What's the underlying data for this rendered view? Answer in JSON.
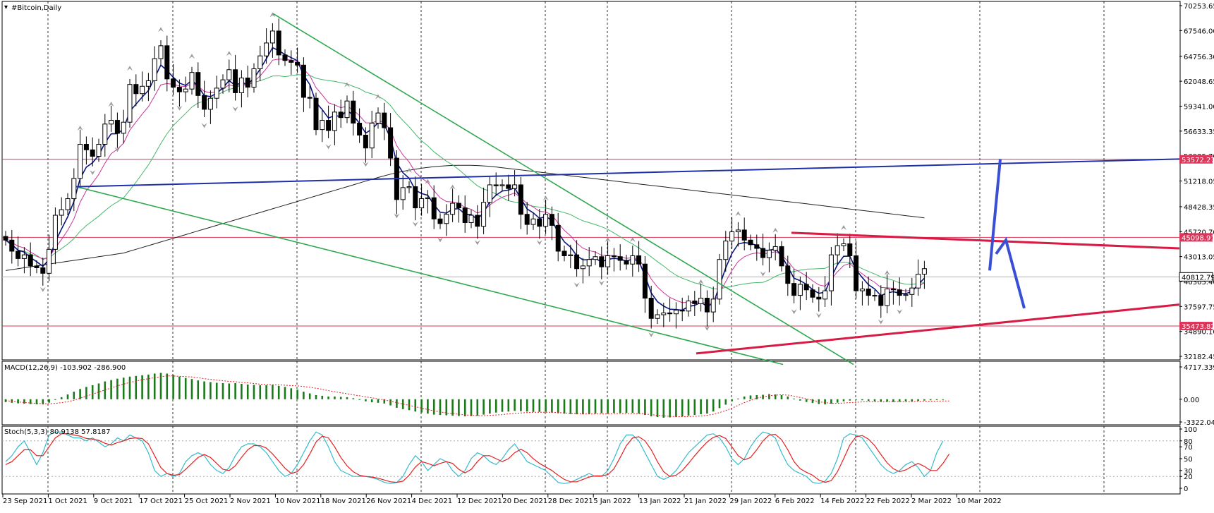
{
  "window": {
    "symbol_title": "#Bitcoin,Daily"
  },
  "colors": {
    "bull_body": "#ffffff",
    "bear_body": "#000000",
    "wick": "#000000",
    "grid": "#000000",
    "hline": "#d9365a",
    "blue_line": "#1f2fa8",
    "green_channel": "#2ea84e",
    "red_trend": "#d81b44",
    "forecast": "#3a50d4",
    "ma_fast": "#0b1580",
    "ma_mid": "#cc3399",
    "ma_slow": "#44b86a",
    "ma_long": "#202020",
    "macd_hist": "#1a7a1a",
    "macd_signal": "#e52020",
    "stoch_main": "#33bbcc",
    "stoch_signal": "#e52020",
    "tag_red": "#d9365a",
    "tag_dark": "#000000"
  },
  "chart_data": [
    {
      "type": "candlestick",
      "title": "#Bitcoin,Daily",
      "ylim": [
        32182.45,
        70253.65
      ],
      "price_ticks": [
        "70253.65",
        "67546.00",
        "64756.30",
        "62048.65",
        "59341.00",
        "56633.35",
        "53925.70",
        "51218.05",
        "48428.35",
        "45720.70",
        "43013.05",
        "40305.40",
        "37597.75",
        "34890.10",
        "32182.45"
      ],
      "horizontal_levels": [
        {
          "value": 53572.27,
          "label": "53572.27",
          "style": "red-tag"
        },
        {
          "value": 45098.91,
          "label": "45098.91",
          "style": "red-tag"
        },
        {
          "value": 40812.79,
          "label": "40812.79",
          "style": "current-price"
        },
        {
          "value": 35473.82,
          "label": "35473.82",
          "style": "red-tag"
        }
      ],
      "x_labels": [
        "23 Sep 2021",
        "1 Oct 2021",
        "9 Oct 2021",
        "17 Oct 2021",
        "25 Oct 2021",
        "2 Nov 2021",
        "10 Nov 2021",
        "18 Nov 2021",
        "26 Nov 2021",
        "4 Dec 2021",
        "12 Dec 2021",
        "20 Dec 2021",
        "28 Dec 2021",
        "5 Jan 2022",
        "13 Jan 2022",
        "21 Jan 2022",
        "29 Jan 2022",
        "6 Feb 2022",
        "14 Feb 2022",
        "22 Feb 2022",
        "2 Mar 2022",
        "10 Mar 2022"
      ],
      "series_close": [
        44800,
        43600,
        42800,
        43200,
        42000,
        41800,
        41200,
        43800,
        47500,
        48100,
        49300,
        51500,
        55200,
        54600,
        53900,
        55200,
        57400,
        57800,
        56400,
        57600,
        61700,
        60700,
        61500,
        62100,
        64500,
        65900,
        62300,
        61400,
        60900,
        61200,
        63000,
        60500,
        59000,
        60200,
        61300,
        62200,
        63300,
        60800,
        62400,
        61400,
        63400,
        64800,
        66200,
        67500,
        64900,
        64300,
        64100,
        63800,
        60300,
        60200,
        56800,
        57800,
        56700,
        58700,
        58100,
        59900,
        57500,
        56200,
        54800,
        57500,
        58600,
        57000,
        53700,
        49200,
        50500,
        50600,
        48300,
        49300,
        49400,
        47100,
        46600,
        47600,
        48800,
        48300,
        46700,
        47500,
        46300,
        48900,
        50800,
        50700,
        50800,
        50400,
        50800,
        47600,
        46500,
        47100,
        46300,
        47600,
        46400,
        43600,
        43100,
        43200,
        41700,
        42000,
        42700,
        43000,
        41900,
        43100,
        43000,
        42600,
        42200,
        43100,
        42200,
        38500,
        36300,
        36700,
        36900,
        36800,
        37200,
        37100,
        38200,
        37900,
        38500,
        37000,
        38400,
        42700,
        44700,
        45700,
        45900,
        44800,
        44300,
        43900,
        42900,
        43700,
        44100,
        42000,
        40100,
        38800,
        40000,
        39400,
        38600,
        38400,
        39300,
        43200,
        44200,
        44400,
        43100,
        39300,
        39500,
        38800,
        38800,
        37700,
        39500,
        39400,
        38800,
        38900,
        39600,
        41100,
        41700
      ],
      "annotations": [
        "green descending channel",
        "blue rising resistance line",
        "red converging triangle",
        "blue forecast path"
      ],
      "moving_averages": [
        "fast MA",
        "mid MA",
        "slow MA",
        "long MA"
      ]
    },
    {
      "type": "histogram",
      "title": "MACD(12,26,9) -103.902 -286.900",
      "ticks": [
        "4717.339",
        "0.00",
        "-3322.042"
      ],
      "ylim": [
        -3322.042,
        4717.339
      ],
      "hist": [
        -420,
        -520,
        -600,
        -640,
        -700,
        -740,
        -760,
        -500,
        -100,
        300,
        700,
        1100,
        1500,
        1800,
        2050,
        2300,
        2600,
        2800,
        3000,
        3150,
        3300,
        3400,
        3500,
        3600,
        3750,
        3850,
        3750,
        3550,
        3300,
        3100,
        2950,
        2750,
        2600,
        2500,
        2400,
        2350,
        2300,
        2350,
        2250,
        2150,
        2100,
        2050,
        2050,
        2100,
        1950,
        1800,
        1600,
        1400,
        1100,
        850,
        600,
        500,
        400,
        400,
        350,
        300,
        150,
        -80,
        -300,
        -450,
        -520,
        -620,
        -900,
        -1250,
        -1450,
        -1600,
        -1800,
        -1950,
        -2100,
        -2250,
        -2300,
        -2350,
        -2400,
        -2450,
        -2500,
        -2450,
        -2400,
        -2250,
        -2100,
        -1950,
        -1850,
        -1800,
        -1700,
        -1750,
        -1800,
        -1850,
        -1850,
        -1850,
        -1950,
        -2050,
        -2100,
        -2150,
        -2200,
        -2200,
        -2150,
        -2100,
        -2050,
        -2050,
        -2000,
        -2000,
        -2000,
        -2000,
        -2100,
        -2300,
        -2500,
        -2600,
        -2700,
        -2650,
        -2600,
        -2500,
        -2400,
        -2300,
        -2200,
        -2100,
        -1800,
        -1300,
        -800,
        -300,
        100,
        400,
        550,
        600,
        650,
        750,
        700,
        600,
        400,
        100,
        -200,
        -400,
        -550,
        -700,
        -750,
        -650,
        -500,
        -300,
        -200,
        -100,
        -150,
        -250,
        -300,
        -350,
        -350,
        -400,
        -350,
        -300,
        -300,
        -250,
        -200,
        -150,
        -120,
        -100
      ],
      "signal": [
        -200,
        -300,
        -400,
        -480,
        -550,
        -600,
        -650,
        -650,
        -600,
        -500,
        -350,
        -150,
        150,
        450,
        750,
        1050,
        1350,
        1650,
        1950,
        2200,
        2450,
        2650,
        2850,
        3000,
        3150,
        3300,
        3400,
        3400,
        3350,
        3300,
        3250,
        3150,
        3000,
        2900,
        2800,
        2700,
        2600,
        2550,
        2450,
        2400,
        2300,
        2200,
        2150,
        2100,
        2100,
        2050,
        2000,
        1950,
        1850,
        1750,
        1600,
        1450,
        1250,
        1100,
        950,
        800,
        650,
        500,
        350,
        200,
        50,
        -100,
        -300,
        -500,
        -700,
        -900,
        -1100,
        -1300,
        -1500,
        -1700,
        -1850,
        -2000,
        -2100,
        -2200,
        -2300,
        -2350,
        -2400,
        -2400,
        -2350,
        -2300,
        -2250,
        -2150,
        -2050,
        -2000,
        -1950,
        -1900,
        -1900,
        -1900,
        -1900,
        -1950,
        -2000,
        -2050,
        -2100,
        -2150,
        -2150,
        -2150,
        -2150,
        -2150,
        -2100,
        -2100,
        -2100,
        -2100,
        -2100,
        -2150,
        -2250,
        -2350,
        -2450,
        -2500,
        -2550,
        -2550,
        -2550,
        -2500,
        -2450,
        -2350,
        -2200,
        -1950,
        -1650,
        -1300,
        -900,
        -500,
        -150,
        150,
        350,
        500,
        600,
        650,
        600,
        450,
        250,
        50,
        -150,
        -350,
        -500,
        -600,
        -600,
        -550,
        -500,
        -450,
        -400,
        -350,
        -350,
        -350,
        -350,
        -350,
        -350,
        -350,
        -350,
        -300,
        -300,
        -280,
        -270,
        -260,
        -250
      ]
    },
    {
      "type": "line",
      "title": "Stoch(5,3,3) 80.9138 57.8187",
      "ticks": [
        "100",
        "80",
        "70",
        "50",
        "30",
        "20",
        "0"
      ],
      "ylim": [
        0,
        100
      ],
      "main": [
        45,
        55,
        70,
        80,
        60,
        40,
        60,
        90,
        95,
        95,
        90,
        85,
        85,
        80,
        85,
        78,
        70,
        75,
        85,
        80,
        90,
        85,
        80,
        60,
        30,
        20,
        25,
        20,
        25,
        45,
        55,
        60,
        55,
        40,
        30,
        25,
        35,
        55,
        70,
        75,
        75,
        70,
        60,
        45,
        30,
        20,
        25,
        40,
        60,
        80,
        95,
        90,
        70,
        45,
        30,
        25,
        20,
        20,
        20,
        18,
        15,
        10,
        8,
        10,
        20,
        40,
        55,
        45,
        30,
        40,
        50,
        45,
        30,
        20,
        30,
        50,
        60,
        55,
        45,
        40,
        50,
        65,
        75,
        60,
        45,
        40,
        35,
        30,
        20,
        10,
        8,
        10,
        15,
        20,
        25,
        20,
        20,
        30,
        50,
        75,
        90,
        90,
        80,
        60,
        40,
        20,
        15,
        20,
        30,
        45,
        60,
        70,
        80,
        90,
        92,
        85,
        70,
        50,
        40,
        50,
        70,
        85,
        95,
        92,
        85,
        60,
        40,
        30,
        25,
        20,
        10,
        8,
        12,
        25,
        50,
        85,
        92,
        90,
        85,
        70,
        55,
        40,
        30,
        25,
        30,
        40,
        45,
        35,
        20,
        30,
        60,
        80
      ],
      "signal": [
        40,
        45,
        55,
        65,
        65,
        55,
        55,
        70,
        85,
        92,
        92,
        90,
        88,
        84,
        83,
        81,
        76,
        73,
        77,
        80,
        84,
        85,
        84,
        75,
        55,
        35,
        25,
        22,
        23,
        32,
        42,
        52,
        57,
        52,
        42,
        32,
        30,
        38,
        52,
        65,
        72,
        72,
        68,
        58,
        46,
        34,
        25,
        28,
        40,
        58,
        78,
        88,
        85,
        70,
        52,
        38,
        28,
        22,
        20,
        19,
        17,
        14,
        11,
        10,
        12,
        22,
        36,
        45,
        42,
        38,
        42,
        45,
        42,
        32,
        26,
        32,
        45,
        55,
        55,
        50,
        45,
        50,
        60,
        66,
        60,
        50,
        42,
        36,
        30,
        22,
        15,
        11,
        11,
        15,
        19,
        21,
        21,
        23,
        33,
        52,
        72,
        85,
        87,
        80,
        65,
        45,
        28,
        20,
        22,
        30,
        42,
        55,
        67,
        78,
        86,
        89,
        84,
        70,
        55,
        48,
        52,
        65,
        80,
        90,
        91,
        82,
        65,
        45,
        33,
        27,
        22,
        14,
        10,
        13,
        28,
        50,
        73,
        87,
        89,
        83,
        72,
        57,
        43,
        33,
        28,
        31,
        37,
        42,
        37,
        30,
        30,
        42,
        58
      ]
    }
  ]
}
